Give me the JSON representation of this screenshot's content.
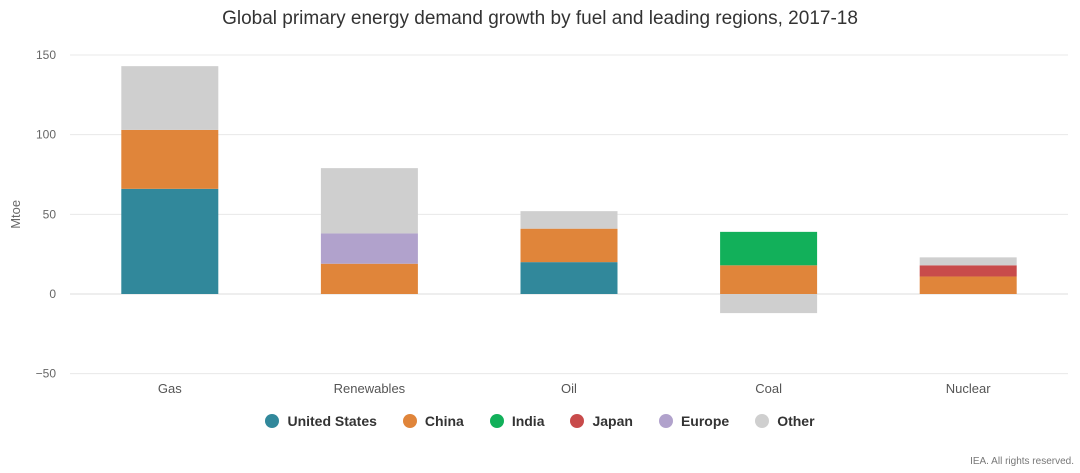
{
  "chart_data": {
    "type": "bar",
    "stacked": true,
    "title": "Global primary energy demand growth by fuel and leading regions, 2017-18",
    "ylabel": "Mtoe",
    "xlabel": "",
    "ylim": [
      -50,
      150
    ],
    "yticks": [
      "150",
      "100",
      "50",
      "0",
      "−50"
    ],
    "ytick_values": [
      150,
      100,
      50,
      0,
      -50
    ],
    "categories": [
      "Gas",
      "Renewables",
      "Oil",
      "Coal",
      "Nuclear"
    ],
    "grid": true,
    "legend_position": "bottom",
    "series": [
      {
        "name": "United States",
        "color": "#31889b",
        "values": [
          66,
          0,
          20,
          0,
          0
        ]
      },
      {
        "name": "China",
        "color": "#e0853a",
        "values": [
          37,
          19,
          21,
          18,
          11
        ]
      },
      {
        "name": "India",
        "color": "#12b05a",
        "values": [
          0,
          0,
          0,
          21,
          0
        ]
      },
      {
        "name": "Japan",
        "color": "#c84b4b",
        "values": [
          0,
          0,
          0,
          0,
          7
        ]
      },
      {
        "name": "Europe",
        "color": "#b1a2cc",
        "values": [
          0,
          19,
          0,
          0,
          0
        ]
      },
      {
        "name": "Other",
        "color": "#cfcfcf",
        "values": [
          40,
          41,
          11,
          -12,
          5
        ]
      }
    ]
  },
  "footer": "IEA. All rights reserved."
}
